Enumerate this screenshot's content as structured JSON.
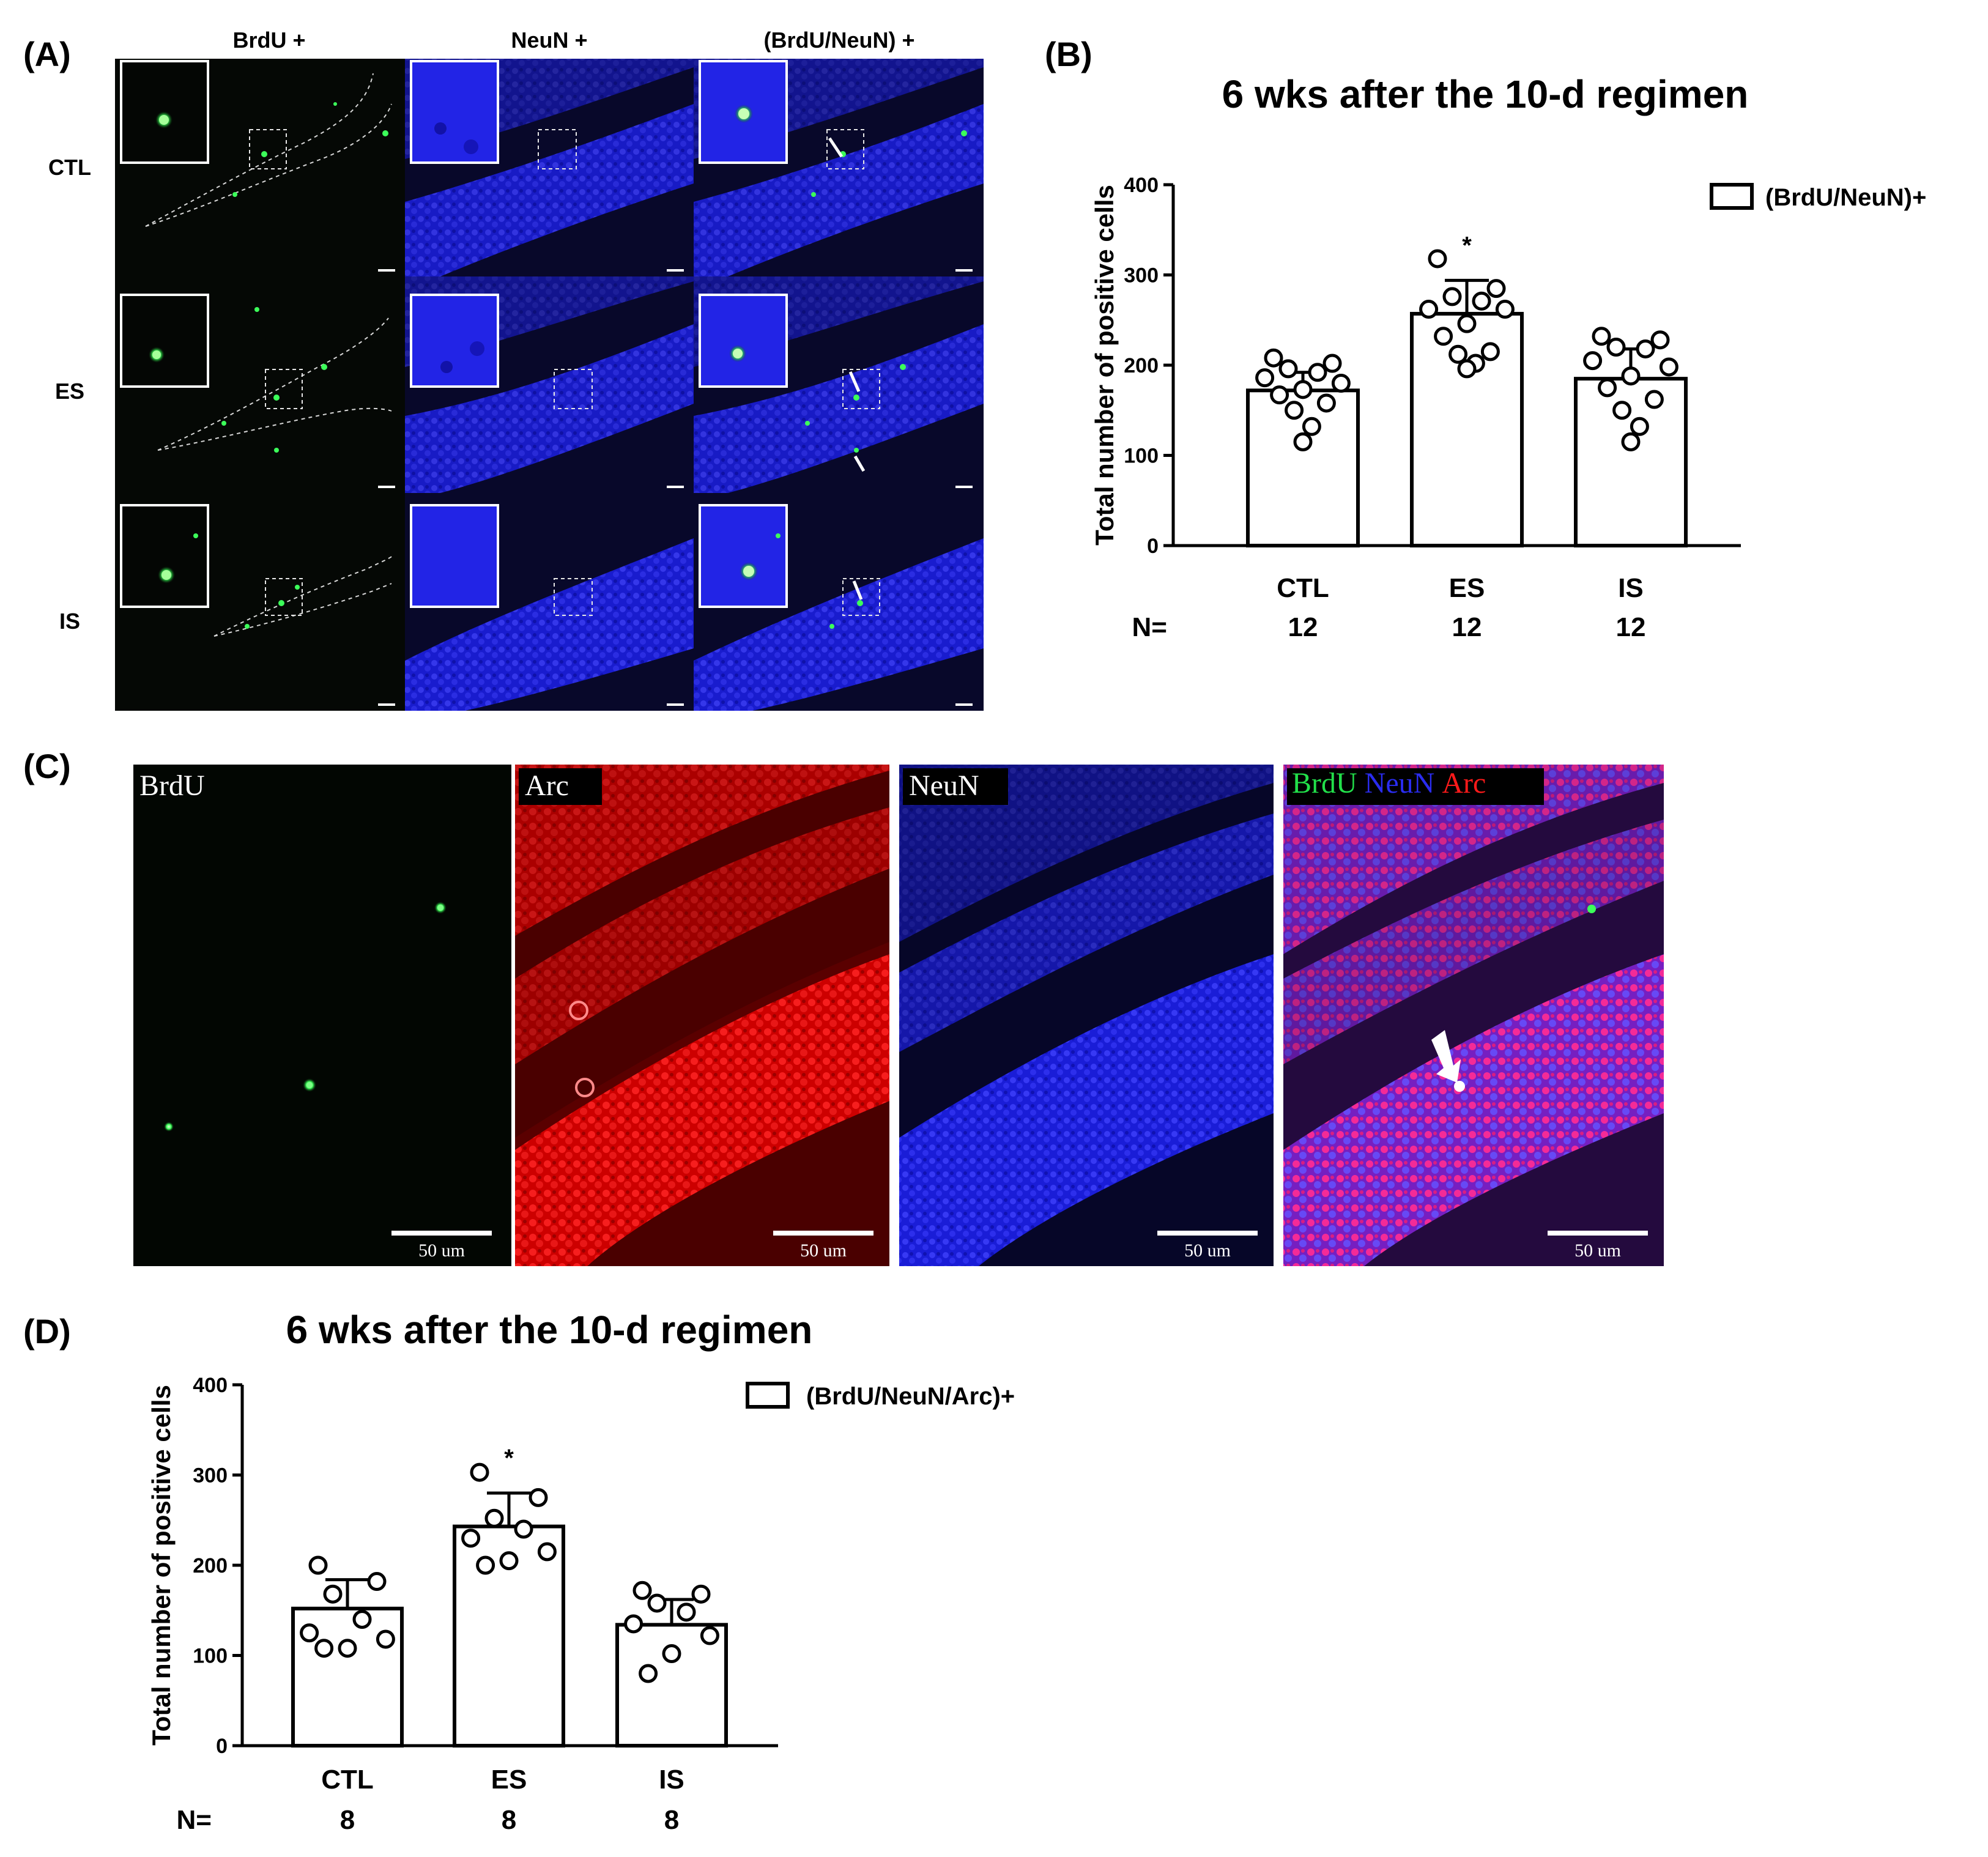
{
  "panel_labels": {
    "A": "(A)",
    "B": "(B)",
    "C": "(C)",
    "D": "(D)"
  },
  "panel_a": {
    "column_headers": [
      "BrdU +",
      "NeuN +",
      "(BrdU/NeuN) +"
    ],
    "row_labels": [
      "CTL",
      "ES",
      "IS"
    ]
  },
  "panel_c": {
    "channel_labels": [
      "BrdU",
      "Arc",
      "NeuN"
    ],
    "merge_label": {
      "green": "BrdU",
      "blue": "NeuN",
      "red": "Arc"
    },
    "scale_bar_label": "50 um"
  },
  "colors": {
    "green_channel": "#22e04a",
    "blue_channel": "#2a2cf0",
    "red_channel": "#ff1a1a",
    "merge_magenta": "#c81ea0",
    "bar_fill": "#ffffff",
    "ink": "#000000"
  },
  "chart_data": [
    {
      "type": "bar",
      "panel": "B",
      "title": "6 wks after the 10-d regimen",
      "ylabel": "Total number of positive cells",
      "xlabel": "",
      "ylim": [
        0,
        400
      ],
      "yticks": [
        0,
        100,
        200,
        300,
        400
      ],
      "categories": [
        "CTL",
        "ES",
        "IS"
      ],
      "n_label": "N=",
      "n_values": [
        "12",
        "12",
        "12"
      ],
      "legend": "(BrdU/NeuN)+",
      "legend_position": "top-right",
      "significance": [
        "",
        "*",
        ""
      ],
      "series": [
        {
          "name": "(BrdU/NeuN)+",
          "values": [
            172,
            257,
            185
          ],
          "sem": [
            20,
            37,
            33
          ],
          "points": [
            [
              208,
              202,
              196,
              192,
              186,
              180,
              173,
              167,
              158,
              150,
              132,
              115
            ],
            [
              318,
              285,
              276,
              271,
              262,
              262,
              246,
              232,
              215,
              212,
              202,
              196
            ],
            [
              232,
              228,
              220,
              218,
              205,
              198,
              188,
              175,
              162,
              150,
              132,
              115
            ]
          ]
        }
      ]
    },
    {
      "type": "bar",
      "panel": "D",
      "title": "6 wks after the 10-d regimen",
      "ylabel": "Total number of positive cells",
      "xlabel": "",
      "ylim": [
        0,
        400
      ],
      "yticks": [
        0,
        100,
        200,
        300,
        400
      ],
      "categories": [
        "CTL",
        "ES",
        "IS"
      ],
      "n_label": "N=",
      "n_values": [
        "8",
        "8",
        "8"
      ],
      "legend": "(BrdU/NeuN/Arc)+",
      "legend_position": "top-right",
      "significance": [
        "",
        "*",
        ""
      ],
      "series": [
        {
          "name": "(BrdU/NeuN/Arc)+",
          "values": [
            152,
            243,
            134
          ],
          "sem": [
            32,
            37,
            28
          ],
          "points": [
            [
              200,
              182,
              168,
              140,
              125,
              118,
              108,
              108
            ],
            [
              303,
              275,
              252,
              240,
              230,
              215,
              205,
              200
            ],
            [
              172,
              168,
              158,
              148,
              135,
              122,
              102,
              80
            ]
          ]
        }
      ]
    }
  ]
}
